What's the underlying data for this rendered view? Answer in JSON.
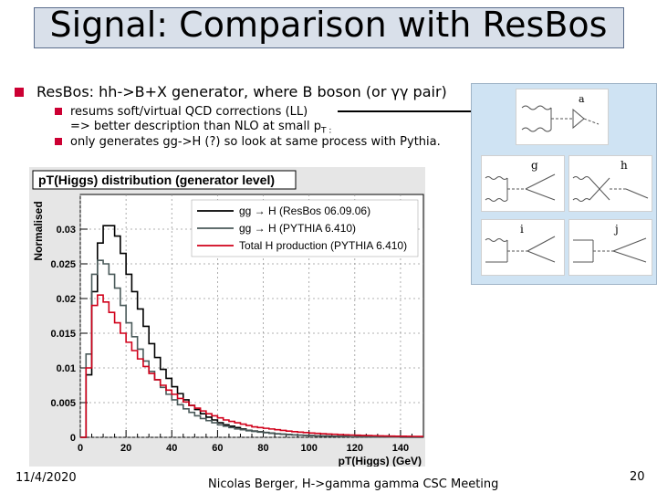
{
  "slide": {
    "title": "Signal: Comparison with ResBos",
    "bullets": {
      "main": "ResBos: hh->B+X generator, where B boson (or γγ pair)",
      "sub1_line1": "resums soft/virtual QCD corrections (LL)",
      "sub1_line2": "=> better description than NLO at small p",
      "sub1_line2_sub": "T :",
      "sub2": "only generates gg->H (?) so look at same process with Pythia."
    },
    "footer": {
      "date": "11/4/2020",
      "center": "Nicolas Berger, H->gamma gamma CSC Meeting",
      "page": "20"
    }
  },
  "diagrams": {
    "labels": [
      "a",
      "g",
      "h",
      "i",
      "j"
    ]
  },
  "chart_data": {
    "type": "line",
    "title": "pT(Higgs) distribution (generator level)",
    "xlabel": "pT(Higgs)  (GeV)",
    "ylabel": "Normalised",
    "xlim": [
      0,
      150
    ],
    "ylim": [
      0,
      0.035
    ],
    "x_ticks": [
      0,
      20,
      40,
      60,
      80,
      100,
      120,
      140
    ],
    "y_ticks": [
      0,
      0.005,
      0.01,
      0.015,
      0.02,
      0.025,
      0.03
    ],
    "x_tick_labels": [
      "0",
      "20",
      "40",
      "60",
      "80",
      "100",
      "120",
      "140"
    ],
    "y_tick_labels": [
      "0",
      "0.005",
      "0.01",
      "0.015",
      "0.02",
      "0.025",
      "0.03"
    ],
    "grid": true,
    "legend_position": "top-right",
    "series": [
      {
        "name": "gg → H (ResBos 06.09.06)",
        "color": "#000000",
        "x": [
          0,
          2.5,
          5,
          7.5,
          10,
          12.5,
          15,
          17.5,
          20,
          22.5,
          25,
          27.5,
          30,
          32.5,
          35,
          37.5,
          40,
          42.5,
          45,
          47.5,
          50,
          52.5,
          55,
          57.5,
          60,
          62.5,
          65,
          67.5,
          70,
          72.5,
          75,
          77.5,
          80,
          82.5,
          85,
          87.5,
          90,
          92.5,
          95,
          97.5,
          100,
          102.5,
          105,
          107.5,
          110,
          112.5,
          115,
          117.5,
          120,
          122.5,
          125,
          127.5,
          130,
          132.5,
          135,
          137.5,
          140,
          142.5,
          145,
          147.5
        ],
        "values": [
          0.0,
          0.009,
          0.021,
          0.028,
          0.0305,
          0.0305,
          0.029,
          0.0265,
          0.0235,
          0.021,
          0.0185,
          0.016,
          0.0135,
          0.0115,
          0.0098,
          0.0085,
          0.0073,
          0.0063,
          0.0054,
          0.0046,
          0.004,
          0.0034,
          0.0029,
          0.0025,
          0.0021,
          0.0018,
          0.0016,
          0.0014,
          0.0012,
          0.001,
          0.0009,
          0.0008,
          0.0007,
          0.0006,
          0.0005,
          0.00045,
          0.0004,
          0.00035,
          0.0003,
          0.00027,
          0.00024,
          0.00021,
          0.00019,
          0.00017,
          0.00015,
          0.00013,
          0.00012,
          0.0001,
          9e-05,
          8e-05,
          7e-05,
          6e-05,
          5e-05,
          5e-05,
          4e-05,
          4e-05,
          3e-05,
          3e-05,
          3e-05,
          2e-05
        ]
      },
      {
        "name": "gg → H (PYTHIA 6.410)",
        "color": "#4a5a5a",
        "x": [
          0,
          2.5,
          5,
          7.5,
          10,
          12.5,
          15,
          17.5,
          20,
          22.5,
          25,
          27.5,
          30,
          32.5,
          35,
          37.5,
          40,
          42.5,
          45,
          47.5,
          50,
          52.5,
          55,
          57.5,
          60,
          62.5,
          65,
          67.5,
          70,
          72.5,
          75,
          77.5,
          80,
          82.5,
          85,
          87.5,
          90,
          92.5,
          95,
          97.5,
          100,
          102.5,
          105,
          107.5,
          110,
          112.5,
          115,
          117.5,
          120,
          122.5,
          125,
          127.5,
          130,
          132.5,
          135,
          137.5,
          140,
          142.5,
          145,
          147.5
        ],
        "values": [
          0.0,
          0.012,
          0.0235,
          0.0255,
          0.025,
          0.0235,
          0.0215,
          0.019,
          0.0165,
          0.0145,
          0.0127,
          0.011,
          0.0095,
          0.0083,
          0.0072,
          0.0062,
          0.0054,
          0.0047,
          0.0041,
          0.0036,
          0.0031,
          0.0027,
          0.0024,
          0.0021,
          0.0018,
          0.0016,
          0.0014,
          0.0012,
          0.0011,
          0.00095,
          0.00085,
          0.00075,
          0.00066,
          0.00058,
          0.00051,
          0.00045,
          0.0004,
          0.00035,
          0.00031,
          0.00028,
          0.00025,
          0.00022,
          0.00019,
          0.00017,
          0.00015,
          0.00013,
          0.00012,
          0.0001,
          9e-05,
          8e-05,
          7e-05,
          6e-05,
          5e-05,
          5e-05,
          4e-05,
          4e-05,
          3e-05,
          3e-05,
          3e-05,
          2e-05
        ]
      },
      {
        "name": "Total H production (PYTHIA 6.410)",
        "color": "#d0001a",
        "x": [
          0,
          2.5,
          5,
          7.5,
          10,
          12.5,
          15,
          17.5,
          20,
          22.5,
          25,
          27.5,
          30,
          32.5,
          35,
          37.5,
          40,
          42.5,
          45,
          47.5,
          50,
          52.5,
          55,
          57.5,
          60,
          62.5,
          65,
          67.5,
          70,
          72.5,
          75,
          77.5,
          80,
          82.5,
          85,
          87.5,
          90,
          92.5,
          95,
          97.5,
          100,
          102.5,
          105,
          107.5,
          110,
          112.5,
          115,
          117.5,
          120,
          122.5,
          125,
          127.5,
          130,
          132.5,
          135,
          137.5,
          140,
          142.5,
          145,
          147.5
        ],
        "values": [
          0.0,
          0.01,
          0.019,
          0.0205,
          0.0195,
          0.018,
          0.0165,
          0.015,
          0.0137,
          0.0125,
          0.0113,
          0.0102,
          0.0092,
          0.0083,
          0.0075,
          0.0068,
          0.0062,
          0.0056,
          0.0051,
          0.0046,
          0.0042,
          0.0038,
          0.0034,
          0.0031,
          0.0028,
          0.0025,
          0.0023,
          0.0021,
          0.0019,
          0.0017,
          0.0015,
          0.0014,
          0.0013,
          0.0012,
          0.0011,
          0.001,
          0.0009,
          0.00082,
          0.00075,
          0.00068,
          0.00062,
          0.00057,
          0.00052,
          0.00047,
          0.00043,
          0.00039,
          0.00036,
          0.00033,
          0.0003,
          0.00027,
          0.00025,
          0.00023,
          0.00021,
          0.00019,
          0.00017,
          0.00016,
          0.00015,
          0.00014,
          0.00013,
          0.00012
        ]
      }
    ]
  }
}
